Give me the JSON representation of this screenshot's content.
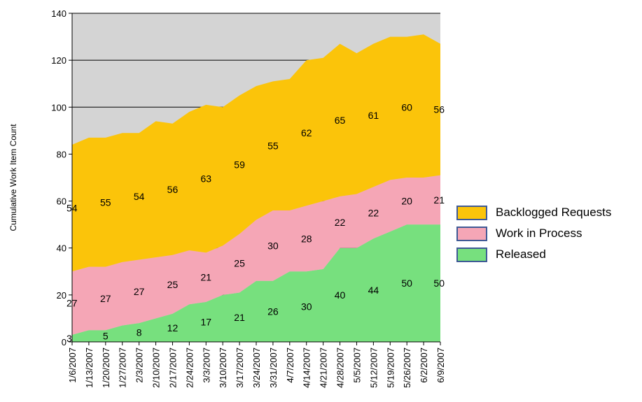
{
  "chart_data": {
    "type": "area",
    "stacked": true,
    "ylabel": "Cumulative Work Item Count",
    "xlabel": "",
    "ylim": [
      0,
      140
    ],
    "yticks": [
      0,
      20,
      40,
      60,
      80,
      100,
      120,
      140
    ],
    "grid": "horizontal major lines",
    "plot_background": "#d4d4d4",
    "legend_position": "right",
    "x": [
      "1/6/2007",
      "1/13/2007",
      "1/20/2007",
      "1/27/2007",
      "2/3/2007",
      "2/10/2007",
      "2/17/2007",
      "2/24/2007",
      "3/3/2007",
      "3/10/2007",
      "3/17/2007",
      "3/24/2007",
      "3/31/2007",
      "4/7/2007",
      "4/14/2007",
      "4/21/2007",
      "4/28/2007",
      "5/5/2007",
      "5/12/2007",
      "5/19/2007",
      "5/26/2007",
      "6/2/2007",
      "6/9/2007"
    ],
    "series": [
      {
        "name": "Released",
        "color": "#77e07e",
        "values": [
          3,
          5,
          5,
          7,
          8,
          10,
          12,
          16,
          17,
          20,
          21,
          26,
          26,
          30,
          30,
          31,
          40,
          40,
          44,
          47,
          50,
          50,
          50
        ]
      },
      {
        "name": "Work in Process",
        "color": "#f5a6b6",
        "values": [
          27,
          27,
          27,
          27,
          27,
          26,
          25,
          23,
          21,
          21,
          25,
          26,
          30,
          26,
          28,
          29,
          22,
          23,
          22,
          22,
          20,
          20,
          21
        ]
      },
      {
        "name": "Backlogged Requests",
        "color": "#fbc40a",
        "values": [
          54,
          55,
          55,
          55,
          54,
          58,
          56,
          59,
          63,
          59,
          59,
          57,
          55,
          56,
          62,
          61,
          65,
          60,
          61,
          61,
          60,
          61,
          56
        ]
      }
    ],
    "data_labels": [
      {
        "series": "Released",
        "index": 0,
        "text": "3"
      },
      {
        "series": "Released",
        "index": 2,
        "text": "5"
      },
      {
        "series": "Released",
        "index": 4,
        "text": "8"
      },
      {
        "series": "Released",
        "index": 6,
        "text": "12"
      },
      {
        "series": "Released",
        "index": 8,
        "text": "17"
      },
      {
        "series": "Released",
        "index": 10,
        "text": "21"
      },
      {
        "series": "Released",
        "index": 12,
        "text": "26"
      },
      {
        "series": "Released",
        "index": 14,
        "text": "30"
      },
      {
        "series": "Released",
        "index": 16,
        "text": "40"
      },
      {
        "series": "Released",
        "index": 18,
        "text": "44"
      },
      {
        "series": "Released",
        "index": 20,
        "text": "50"
      },
      {
        "series": "Released",
        "index": 22,
        "text": "50"
      },
      {
        "series": "Work in Process",
        "index": 0,
        "text": "27"
      },
      {
        "series": "Work in Process",
        "index": 2,
        "text": "27"
      },
      {
        "series": "Work in Process",
        "index": 4,
        "text": "27"
      },
      {
        "series": "Work in Process",
        "index": 6,
        "text": "25"
      },
      {
        "series": "Work in Process",
        "index": 8,
        "text": "21"
      },
      {
        "series": "Work in Process",
        "index": 10,
        "text": "25"
      },
      {
        "series": "Work in Process",
        "index": 12,
        "text": "30"
      },
      {
        "series": "Work in Process",
        "index": 14,
        "text": "28"
      },
      {
        "series": "Work in Process",
        "index": 16,
        "text": "22"
      },
      {
        "series": "Work in Process",
        "index": 18,
        "text": "22"
      },
      {
        "series": "Work in Process",
        "index": 20,
        "text": "20"
      },
      {
        "series": "Work in Process",
        "index": 22,
        "text": "21"
      },
      {
        "series": "Backlogged Requests",
        "index": 0,
        "text": "54"
      },
      {
        "series": "Backlogged Requests",
        "index": 2,
        "text": "55"
      },
      {
        "series": "Backlogged Requests",
        "index": 4,
        "text": "54"
      },
      {
        "series": "Backlogged Requests",
        "index": 6,
        "text": "56"
      },
      {
        "series": "Backlogged Requests",
        "index": 8,
        "text": "63"
      },
      {
        "series": "Backlogged Requests",
        "index": 10,
        "text": "59"
      },
      {
        "series": "Backlogged Requests",
        "index": 12,
        "text": "55"
      },
      {
        "series": "Backlogged Requests",
        "index": 14,
        "text": "62"
      },
      {
        "series": "Backlogged Requests",
        "index": 16,
        "text": "65"
      },
      {
        "series": "Backlogged Requests",
        "index": 18,
        "text": "61"
      },
      {
        "series": "Backlogged Requests",
        "index": 20,
        "text": "60"
      },
      {
        "series": "Backlogged Requests",
        "index": 22,
        "text": "56"
      }
    ]
  },
  "legend": {
    "items": [
      {
        "label": "Backlogged Requests",
        "color": "#fbc40a"
      },
      {
        "label": "Work in Process",
        "color": "#f5a6b6"
      },
      {
        "label": "Released",
        "color": "#77e07e"
      }
    ]
  }
}
